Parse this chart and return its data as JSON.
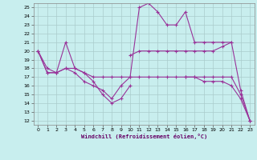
{
  "xlabel": "Windchill (Refroidissement éolien,°C)",
  "bg_color": "#c8eeee",
  "line_color": "#993399",
  "grid_color": "#aacccc",
  "xlim": [
    -0.5,
    23.5
  ],
  "ylim": [
    11.5,
    25.5
  ],
  "xticks": [
    0,
    1,
    2,
    3,
    4,
    5,
    6,
    7,
    8,
    9,
    10,
    11,
    12,
    13,
    14,
    15,
    16,
    17,
    18,
    19,
    20,
    21,
    22,
    23
  ],
  "yticks": [
    12,
    13,
    14,
    15,
    16,
    17,
    18,
    19,
    20,
    21,
    22,
    23,
    24,
    25
  ],
  "lines": [
    {
      "x": [
        0,
        1,
        2,
        3,
        4,
        5,
        6,
        7,
        8,
        9,
        10,
        11,
        12,
        13,
        14,
        15,
        16,
        17,
        18,
        19,
        20,
        21
      ],
      "y": [
        20,
        17.5,
        17.5,
        18,
        17.5,
        16.5,
        16,
        15.5,
        14.5,
        16,
        17,
        25,
        25.5,
        24.5,
        23,
        23,
        24.5,
        21,
        21,
        21,
        21,
        21
      ]
    },
    {
      "x": [
        0,
        1,
        2,
        3,
        4,
        5,
        6,
        7,
        8,
        9,
        10
      ],
      "y": [
        20,
        17.5,
        17.5,
        21,
        18,
        17.5,
        16.5,
        15,
        14,
        14.5,
        16
      ]
    },
    {
      "x": [
        0,
        1,
        2,
        3,
        4,
        5,
        6,
        7,
        8,
        9,
        10,
        11,
        12,
        13,
        14,
        15,
        16,
        17,
        18,
        19,
        20,
        21,
        22,
        23
      ],
      "y": [
        20,
        18,
        17.5,
        18,
        18,
        17.5,
        17,
        17,
        17,
        17,
        17,
        17,
        17,
        17,
        17,
        17,
        17,
        17,
        17,
        17,
        17,
        17,
        15,
        12
      ]
    },
    {
      "x": [
        10,
        11,
        12,
        13,
        14,
        15,
        16,
        17,
        18,
        19,
        20,
        21,
        22,
        23
      ],
      "y": [
        19.5,
        20,
        20,
        20,
        20,
        20,
        20,
        20,
        20,
        20,
        20.5,
        21,
        15.5,
        12
      ]
    },
    {
      "x": [
        16,
        17,
        18,
        19,
        20,
        21,
        22,
        23
      ],
      "y": [
        17,
        17,
        16.5,
        16.5,
        16.5,
        16,
        14.5,
        12
      ]
    }
  ]
}
